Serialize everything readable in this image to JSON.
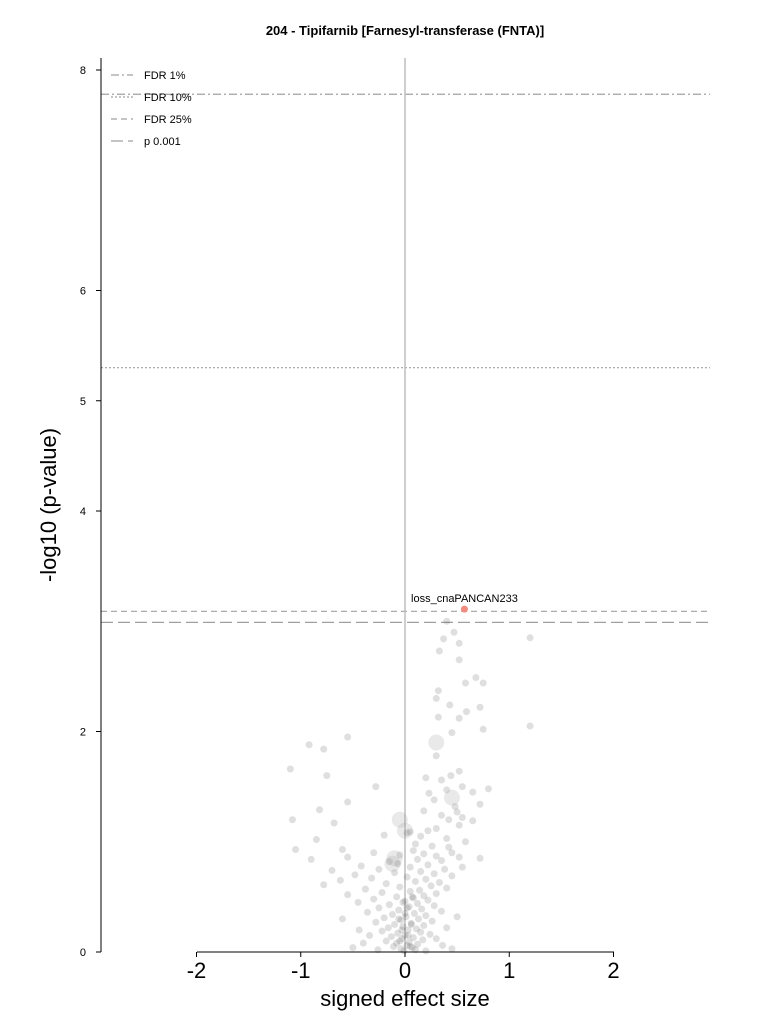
{
  "chart_data": {
    "type": "scatter",
    "title": "204 - Tipifarnib [Farnesyl-transferase (FNTA)]",
    "xlabel": "signed effect size",
    "ylabel": "-log10 (p-value)",
    "xlim": [
      -2.0,
      2.0
    ],
    "ylim": [
      0,
      8.0
    ],
    "xticks": [
      "-2",
      "-1",
      "0",
      "1",
      "2"
    ],
    "yticks": [
      "0",
      "2",
      "4",
      "5",
      "6",
      "8"
    ],
    "grid": false,
    "legend_position": "top-left",
    "thresholds": [
      {
        "name": "FDR 1%",
        "y": 7.78,
        "style": "dashdot"
      },
      {
        "name": "FDR 10%",
        "y": 5.3,
        "style": "dotted"
      },
      {
        "name": "FDR 25%",
        "y": 3.09,
        "style": "dashed"
      },
      {
        "name": "p 0.001",
        "y": 2.99,
        "style": "longdash"
      }
    ],
    "highlight": {
      "label": "loss_cnaPANCAN233",
      "x": 0.57,
      "y": 3.11,
      "color": "#f08c80"
    },
    "points": [
      [
        0.4,
        3.0
      ],
      [
        0.47,
        2.9
      ],
      [
        1.2,
        2.85
      ],
      [
        0.37,
        2.84
      ],
      [
        0.52,
        2.8
      ],
      [
        0.33,
        2.73
      ],
      [
        0.52,
        2.65
      ],
      [
        0.68,
        2.49
      ],
      [
        0.58,
        2.44
      ],
      [
        0.75,
        2.44
      ],
      [
        0.32,
        2.37
      ],
      [
        0.3,
        2.3
      ],
      [
        0.43,
        2.24
      ],
      [
        0.72,
        2.22
      ],
      [
        0.59,
        2.18
      ],
      [
        0.32,
        2.13
      ],
      [
        0.52,
        2.12
      ],
      [
        1.2,
        2.05
      ],
      [
        0.75,
        2.02
      ],
      [
        0.45,
        1.99
      ],
      [
        -0.55,
        1.95
      ],
      [
        -0.92,
        1.88
      ],
      [
        -0.78,
        1.84
      ],
      [
        0.3,
        1.78
      ],
      [
        -1.1,
        1.66
      ],
      [
        0.52,
        1.64
      ],
      [
        0.44,
        1.6
      ],
      [
        0.2,
        1.58
      ],
      [
        0.35,
        1.56
      ],
      [
        -0.75,
        1.6
      ],
      [
        -0.28,
        1.5
      ],
      [
        0.55,
        1.5
      ],
      [
        0.4,
        1.47
      ],
      [
        0.65,
        1.45
      ],
      [
        0.23,
        1.44
      ],
      [
        0.8,
        1.48
      ],
      [
        0.28,
        1.38
      ],
      [
        -0.55,
        1.36
      ],
      [
        0.72,
        1.34
      ],
      [
        0.48,
        1.32
      ],
      [
        -0.82,
        1.29
      ],
      [
        0.18,
        1.28
      ],
      [
        0.5,
        1.27
      ],
      [
        0.35,
        1.24
      ],
      [
        0.55,
        1.22
      ],
      [
        0.42,
        1.2
      ],
      [
        0.65,
        1.19
      ],
      [
        -1.08,
        1.2
      ],
      [
        -0.68,
        1.17
      ],
      [
        0.52,
        1.15
      ],
      [
        0.3,
        1.12
      ],
      [
        0.22,
        1.1
      ],
      [
        0.05,
        1.09
      ],
      [
        0.02,
        1.08
      ],
      [
        0.15,
        1.05
      ],
      [
        -0.2,
        1.06
      ],
      [
        0.4,
        1.03
      ],
      [
        -0.85,
        1.02
      ],
      [
        0.58,
        1.0
      ],
      [
        0.1,
        0.98
      ],
      [
        0.26,
        0.96
      ],
      [
        -1.05,
        0.93
      ],
      [
        0.42,
        0.95
      ],
      [
        -0.6,
        0.93
      ],
      [
        0.08,
        0.92
      ],
      [
        0.45,
        0.9
      ],
      [
        -0.3,
        0.9
      ],
      [
        0.18,
        0.89
      ],
      [
        -0.05,
        0.88
      ],
      [
        0.3,
        0.87
      ],
      [
        0.52,
        0.86
      ],
      [
        -0.55,
        0.86
      ],
      [
        0.72,
        0.85
      ],
      [
        -0.9,
        0.84
      ],
      [
        0.12,
        0.84
      ],
      [
        0.35,
        0.83
      ],
      [
        -0.15,
        0.82
      ],
      [
        -0.07,
        0.8
      ],
      [
        0.22,
        0.79
      ],
      [
        -0.42,
        0.78
      ],
      [
        0.55,
        0.77
      ],
      [
        0.05,
        0.77
      ],
      [
        -0.25,
        0.75
      ],
      [
        0.38,
        0.75
      ],
      [
        -0.7,
        0.74
      ],
      [
        0.15,
        0.73
      ],
      [
        -0.1,
        0.72
      ],
      [
        0.28,
        0.71
      ],
      [
        -0.48,
        0.7
      ],
      [
        0.45,
        0.69
      ],
      [
        0.02,
        0.68
      ],
      [
        -0.32,
        0.67
      ],
      [
        0.2,
        0.66
      ],
      [
        -0.62,
        0.65
      ],
      [
        0.1,
        0.64
      ],
      [
        0.33,
        0.63
      ],
      [
        -0.18,
        0.62
      ],
      [
        -0.78,
        0.61
      ],
      [
        0.25,
        0.6
      ],
      [
        -0.05,
        0.59
      ],
      [
        0.4,
        0.58
      ],
      [
        -0.38,
        0.57
      ],
      [
        0.14,
        0.56
      ],
      [
        0.05,
        0.55
      ],
      [
        -0.22,
        0.54
      ],
      [
        0.3,
        0.53
      ],
      [
        -0.55,
        0.52
      ],
      [
        0.18,
        0.51
      ],
      [
        -0.08,
        0.5
      ],
      [
        0.08,
        0.49
      ],
      [
        -0.3,
        0.48
      ],
      [
        0.22,
        0.47
      ],
      [
        0.0,
        0.46
      ],
      [
        -0.45,
        0.45
      ],
      [
        0.12,
        0.44
      ],
      [
        -0.15,
        0.43
      ],
      [
        0.28,
        0.42
      ],
      [
        0.04,
        0.41
      ],
      [
        -0.25,
        0.4
      ],
      [
        0.16,
        0.39
      ],
      [
        -0.06,
        0.38
      ],
      [
        0.35,
        0.37
      ],
      [
        -0.36,
        0.36
      ],
      [
        0.09,
        0.35
      ],
      [
        -0.12,
        0.34
      ],
      [
        0.2,
        0.33
      ],
      [
        0.01,
        0.32
      ],
      [
        -0.2,
        0.31
      ],
      [
        0.13,
        0.3
      ],
      [
        -0.04,
        0.29
      ],
      [
        0.26,
        0.28
      ],
      [
        -0.28,
        0.27
      ],
      [
        0.06,
        0.26
      ],
      [
        -0.1,
        0.25
      ],
      [
        0.18,
        0.24
      ],
      [
        -0.02,
        0.23
      ],
      [
        -0.16,
        0.22
      ],
      [
        0.11,
        0.21
      ],
      [
        0.03,
        0.2
      ],
      [
        -0.22,
        0.19
      ],
      [
        0.15,
        0.18
      ],
      [
        -0.07,
        0.17
      ],
      [
        0.24,
        0.16
      ],
      [
        0.0,
        0.15
      ],
      [
        -0.13,
        0.14
      ],
      [
        0.08,
        0.13
      ],
      [
        -0.03,
        0.12
      ],
      [
        0.17,
        0.11
      ],
      [
        -0.18,
        0.1
      ],
      [
        0.04,
        0.09
      ],
      [
        -0.08,
        0.08
      ],
      [
        0.12,
        0.07
      ],
      [
        0.02,
        0.06
      ],
      [
        -0.11,
        0.05
      ],
      [
        0.07,
        0.04
      ],
      [
        -0.04,
        0.03
      ],
      [
        0.1,
        0.02
      ],
      [
        -0.01,
        0.01
      ],
      [
        0.05,
        0.05
      ],
      [
        -0.05,
        0.1
      ],
      [
        0.03,
        0.15
      ],
      [
        -0.03,
        0.2
      ],
      [
        0.06,
        0.25
      ],
      [
        -0.06,
        0.3
      ],
      [
        0.0,
        0.35
      ],
      [
        0.02,
        0.4
      ],
      [
        -0.02,
        0.45
      ],
      [
        0.07,
        0.5
      ],
      [
        -0.34,
        0.15
      ],
      [
        0.3,
        0.12
      ],
      [
        -0.4,
        0.08
      ],
      [
        0.36,
        0.06
      ],
      [
        -0.5,
        0.04
      ],
      [
        0.45,
        0.03
      ],
      [
        -0.26,
        0.02
      ],
      [
        0.2,
        0.01
      ],
      [
        -0.44,
        0.2
      ],
      [
        0.4,
        0.22
      ],
      [
        -0.6,
        0.3
      ],
      [
        0.5,
        0.32
      ]
    ],
    "big_points": [
      [
        -0.1,
        0.85
      ],
      [
        -0.12,
        0.8
      ],
      [
        0.0,
        1.1
      ],
      [
        -0.05,
        1.2
      ],
      [
        0.45,
        1.4
      ],
      [
        0.3,
        1.9
      ]
    ]
  }
}
